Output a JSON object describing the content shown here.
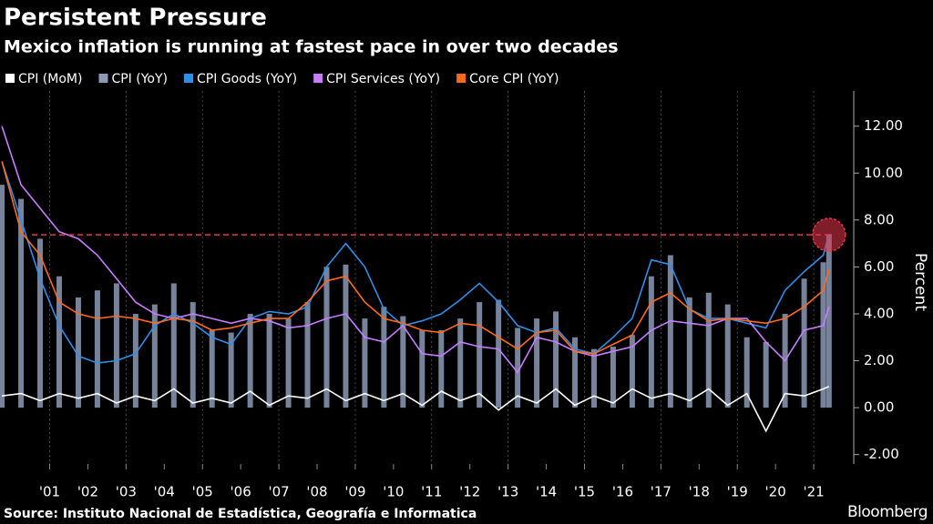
{
  "chart_data": {
    "type": "bar-line",
    "title": "Persistent Pressure",
    "subtitle": "Mexico inflation is running at fastest pace in over two decades",
    "y_label": "Percent",
    "source": "Source: Instituto Nacional de Estadística, Geografía e Informatica",
    "brand": "Bloomberg",
    "x": [
      2000.25,
      2000.75,
      2001.25,
      2001.75,
      2002.25,
      2002.75,
      2003.25,
      2003.75,
      2004.25,
      2004.75,
      2005.25,
      2005.75,
      2006.25,
      2006.75,
      2007.25,
      2007.75,
      2008.25,
      2008.75,
      2009.25,
      2009.75,
      2010.25,
      2010.75,
      2011.25,
      2011.75,
      2012.25,
      2012.75,
      2013.25,
      2013.75,
      2014.25,
      2014.75,
      2015.25,
      2015.75,
      2016.25,
      2016.75,
      2017.25,
      2017.75,
      2018.25,
      2018.75,
      2019.25,
      2019.75,
      2020.25,
      2020.75,
      2021.25,
      2021.75,
      2021.9
    ],
    "series": [
      {
        "name": "CPI (MoM)",
        "color": "#ffffff",
        "kind": "line",
        "values": [
          0.5,
          0.6,
          0.3,
          0.6,
          0.4,
          0.6,
          0.2,
          0.5,
          0.3,
          0.8,
          0.2,
          0.4,
          0.2,
          0.7,
          0.1,
          0.5,
          0.4,
          0.8,
          0.3,
          0.6,
          0.3,
          0.6,
          0.1,
          0.7,
          0.3,
          0.6,
          -0.1,
          0.5,
          0.2,
          0.8,
          0.1,
          0.5,
          0.2,
          0.8,
          0.4,
          0.6,
          0.3,
          0.8,
          0.1,
          0.6,
          -1.0,
          0.6,
          0.5,
          0.8,
          0.9
        ]
      },
      {
        "name": "CPI (YoY)",
        "color": "#8b9ab5",
        "kind": "bar",
        "values": [
          9.5,
          8.9,
          7.2,
          5.6,
          4.7,
          5.0,
          5.3,
          4.0,
          4.4,
          5.3,
          4.5,
          3.3,
          3.2,
          4.0,
          4.0,
          3.8,
          4.5,
          6.0,
          6.1,
          3.8,
          4.3,
          3.9,
          3.3,
          3.3,
          3.8,
          4.5,
          4.6,
          3.4,
          3.8,
          4.1,
          3.0,
          2.5,
          2.6,
          3.1,
          5.6,
          6.5,
          4.7,
          4.9,
          4.4,
          3.0,
          2.8,
          4.0,
          5.5,
          6.2,
          7.4
        ]
      },
      {
        "name": "CPI Goods (YoY)",
        "color": "#2f8fe8",
        "kind": "line",
        "values": [
          10.5,
          8.0,
          5.5,
          3.5,
          2.2,
          1.9,
          2.0,
          2.3,
          3.5,
          4.0,
          3.6,
          3.0,
          2.7,
          3.8,
          4.1,
          4.0,
          4.3,
          6.0,
          7.0,
          6.0,
          4.2,
          3.5,
          3.7,
          4.0,
          4.6,
          5.3,
          4.5,
          3.5,
          3.2,
          3.4,
          2.5,
          2.3,
          3.0,
          3.8,
          6.3,
          6.1,
          4.2,
          3.8,
          3.8,
          3.6,
          3.4,
          5.0,
          5.8,
          6.5,
          7.4
        ]
      },
      {
        "name": "CPI Services (YoY)",
        "color": "#c77dff",
        "kind": "line",
        "values": [
          12.0,
          9.5,
          8.5,
          7.5,
          7.2,
          6.5,
          5.5,
          4.5,
          4.0,
          3.8,
          4.0,
          3.8,
          3.6,
          3.8,
          3.7,
          3.4,
          3.5,
          3.8,
          4.0,
          3.0,
          2.8,
          3.5,
          2.3,
          2.2,
          2.8,
          2.6,
          2.5,
          1.5,
          3.0,
          2.8,
          2.4,
          2.2,
          2.4,
          2.6,
          3.3,
          3.7,
          3.6,
          3.5,
          3.8,
          3.8,
          2.8,
          2.0,
          3.3,
          3.5,
          4.3
        ]
      },
      {
        "name": "Core CPI (YoY)",
        "color": "#ff6a1a",
        "kind": "line",
        "values": [
          10.5,
          7.5,
          6.5,
          4.5,
          4.0,
          3.8,
          3.9,
          3.8,
          3.6,
          3.8,
          3.7,
          3.3,
          3.4,
          3.6,
          3.8,
          3.8,
          4.5,
          5.4,
          5.6,
          4.5,
          3.8,
          3.6,
          3.3,
          3.2,
          3.6,
          3.5,
          3.0,
          2.5,
          3.2,
          3.3,
          2.4,
          2.3,
          2.7,
          3.1,
          4.5,
          4.9,
          4.2,
          3.7,
          3.8,
          3.7,
          3.6,
          3.8,
          4.3,
          5.0,
          5.9
        ]
      }
    ],
    "reference_line": 7.37,
    "reference_color": "#e8374a",
    "xlim": [
      2000.2,
      2022.5
    ],
    "xticks": [
      {
        "value": 2001.5,
        "label": "'01"
      },
      {
        "value": 2002.5,
        "label": "'02"
      },
      {
        "value": 2003.5,
        "label": "'03"
      },
      {
        "value": 2004.5,
        "label": "'04"
      },
      {
        "value": 2005.5,
        "label": "'05"
      },
      {
        "value": 2006.5,
        "label": "'06"
      },
      {
        "value": 2007.5,
        "label": "'07"
      },
      {
        "value": 2008.5,
        "label": "'08"
      },
      {
        "value": 2009.5,
        "label": "'09"
      },
      {
        "value": 2010.5,
        "label": "'10"
      },
      {
        "value": 2011.5,
        "label": "'11"
      },
      {
        "value": 2012.5,
        "label": "'12"
      },
      {
        "value": 2013.5,
        "label": "'13"
      },
      {
        "value": 2014.5,
        "label": "'14"
      },
      {
        "value": 2015.5,
        "label": "'15"
      },
      {
        "value": 2016.5,
        "label": "'16"
      },
      {
        "value": 2017.5,
        "label": "'17"
      },
      {
        "value": 2018.5,
        "label": "'18"
      },
      {
        "value": 2019.5,
        "label": "'19"
      },
      {
        "value": 2020.5,
        "label": "'20"
      },
      {
        "value": 2021.5,
        "label": "'21"
      }
    ],
    "ylim": [
      -2.4,
      13.5
    ],
    "yticks": [
      {
        "value": -2,
        "label": "-2.00"
      },
      {
        "value": 0,
        "label": "0.00"
      },
      {
        "value": 2,
        "label": "2.00"
      },
      {
        "value": 4,
        "label": "4.00"
      },
      {
        "value": 6,
        "label": "6.00"
      },
      {
        "value": 8,
        "label": "8.00"
      },
      {
        "value": 10,
        "label": "10.00"
      },
      {
        "value": 12,
        "label": "12.00"
      }
    ]
  }
}
